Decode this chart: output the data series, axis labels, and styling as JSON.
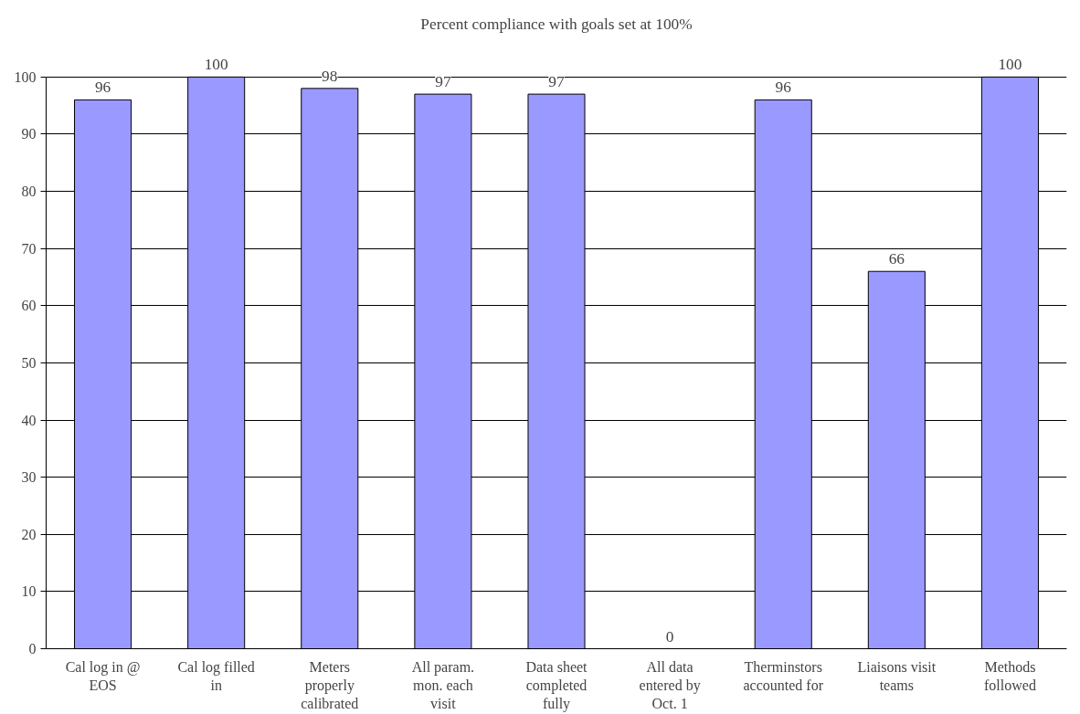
{
  "chart_data": {
    "type": "bar",
    "title": "Percent compliance with goals set at 100%",
    "categories": [
      "Cal log in @ EOS",
      "Cal log filled in",
      "Meters properly calibrated",
      "All param. mon. each visit",
      "Data sheet completed fully",
      "All data entered by Oct. 1",
      "Therminstors accounted for",
      "Liaisons visit teams",
      "Methods followed"
    ],
    "values": [
      96,
      100,
      98,
      97,
      97,
      0,
      96,
      66,
      100
    ],
    "color": "#9999ff",
    "ylim": [
      0,
      100
    ],
    "yticks": [
      0,
      10,
      20,
      30,
      40,
      50,
      60,
      70,
      80,
      90,
      100
    ],
    "grid": "y",
    "data_labels": true
  }
}
